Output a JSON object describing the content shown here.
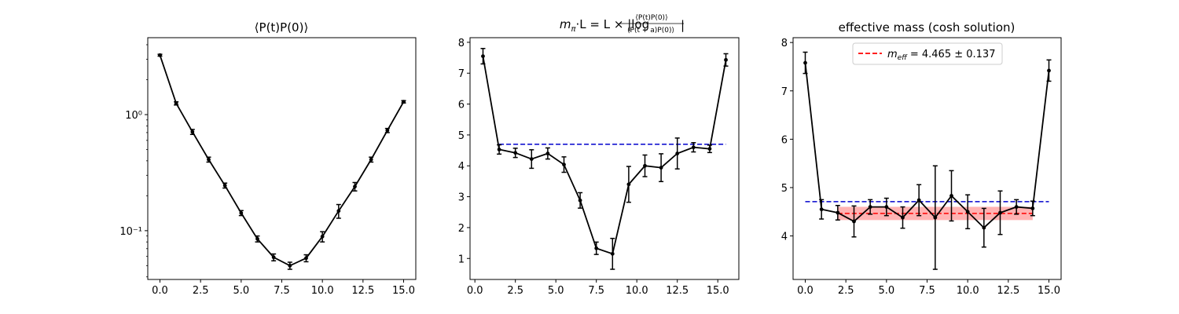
{
  "chart_data": [
    {
      "type": "line",
      "title": "⟨P(t)P(0)⟩",
      "yscale": "log",
      "xlim": [
        -0.75,
        15.75
      ],
      "ylim": [
        0.038,
        4.6
      ],
      "xticks": [
        0.0,
        2.5,
        5.0,
        7.5,
        10.0,
        12.5,
        15.0
      ],
      "xtick_labels": [
        "0.0",
        "2.5",
        "5.0",
        "7.5",
        "10.0",
        "12.5",
        "15.0"
      ],
      "yticks": [
        0.1,
        1
      ],
      "ytick_labels": [
        "10⁻¹",
        "10⁰"
      ],
      "series": [
        {
          "color": "#000000",
          "x": [
            0,
            1,
            2,
            3,
            4,
            5,
            6,
            7,
            8,
            9,
            10,
            11,
            12,
            13,
            14,
            15
          ],
          "y": [
            3.25,
            1.25,
            0.71,
            0.41,
            0.245,
            0.142,
            0.085,
            0.059,
            0.05,
            0.058,
            0.089,
            0.148,
            0.24,
            0.41,
            0.73,
            1.29
          ],
          "yerr": [
            0.06,
            0.04,
            0.035,
            0.02,
            0.012,
            0.007,
            0.005,
            0.004,
            0.0035,
            0.004,
            0.009,
            0.02,
            0.02,
            0.02,
            0.03,
            0.03
          ]
        }
      ]
    },
    {
      "type": "line",
      "title_parts": [
        "m",
        "π",
        "·L = L × |log",
        "⟨P(t)P(0)⟩",
        "⟨P(t + a)P(0)⟩",
        "|"
      ],
      "xlim": [
        -0.3,
        16.3
      ],
      "ylim": [
        0.32,
        8.15
      ],
      "xticks": [
        0.0,
        2.5,
        5.0,
        7.5,
        10.0,
        12.5,
        15.0
      ],
      "xtick_labels": [
        "0.0",
        "2.5",
        "5.0",
        "7.5",
        "10.0",
        "12.5",
        "15.0"
      ],
      "yticks": [
        1,
        2,
        3,
        4,
        5,
        6,
        7,
        8
      ],
      "ytick_labels": [
        "1",
        "2",
        "3",
        "4",
        "5",
        "6",
        "7",
        "8"
      ],
      "series": [
        {
          "color": "#000000",
          "x": [
            0.5,
            1.5,
            2.5,
            3.5,
            4.5,
            5.5,
            6.5,
            7.5,
            8.5,
            9.5,
            10.5,
            11.5,
            12.5,
            13.5,
            14.5,
            15.5
          ],
          "y": [
            7.55,
            4.53,
            4.42,
            4.22,
            4.4,
            4.04,
            2.88,
            1.33,
            1.15,
            3.4,
            4.0,
            3.94,
            4.4,
            4.6,
            4.55,
            7.43
          ],
          "yerr": [
            0.25,
            0.15,
            0.15,
            0.3,
            0.18,
            0.25,
            0.25,
            0.2,
            0.5,
            0.58,
            0.35,
            0.45,
            0.5,
            0.15,
            0.12,
            0.2
          ]
        }
      ],
      "hlines": [
        {
          "y": 4.7,
          "xmin": 1.5,
          "xmax": 15.5,
          "color": "#0000cc",
          "style": "dashed"
        }
      ]
    },
    {
      "type": "line",
      "title": "effective mass (cosh solution)",
      "xlim": [
        -0.75,
        15.75
      ],
      "ylim": [
        3.1,
        8.1
      ],
      "xticks": [
        0.0,
        2.5,
        5.0,
        7.5,
        10.0,
        12.5,
        15.0
      ],
      "xtick_labels": [
        "0.0",
        "2.5",
        "5.0",
        "7.5",
        "10.0",
        "12.5",
        "15.0"
      ],
      "yticks": [
        4,
        5,
        6,
        7,
        8
      ],
      "ytick_labels": [
        "4",
        "5",
        "6",
        "7",
        "8"
      ],
      "series": [
        {
          "color": "#000000",
          "x": [
            0,
            1,
            2,
            3,
            4,
            5,
            6,
            7,
            8,
            9,
            10,
            11,
            12,
            13,
            14,
            15
          ],
          "y": [
            7.58,
            4.55,
            4.48,
            4.3,
            4.6,
            4.6,
            4.38,
            4.74,
            4.38,
            4.83,
            4.5,
            4.17,
            4.48,
            4.6,
            4.57,
            7.42
          ],
          "yerr": [
            0.22,
            0.2,
            0.15,
            0.32,
            0.15,
            0.18,
            0.22,
            0.32,
            1.07,
            0.52,
            0.35,
            0.4,
            0.45,
            0.15,
            0.15,
            0.22
          ]
        }
      ],
      "hlines": [
        {
          "y": 4.71,
          "xmin": 0,
          "xmax": 15,
          "color": "#0000cc",
          "style": "dashed"
        },
        {
          "y": 4.465,
          "xmin": 2,
          "xmax": 14,
          "color": "#ff0000",
          "style": "dashed"
        }
      ],
      "band": {
        "ymin": 4.328,
        "ymax": 4.602,
        "xmin": 2,
        "xmax": 14,
        "color": "#ff9999"
      },
      "legend": {
        "position": "top-center",
        "entry": "m",
        "entry_sub": "eff",
        "entry_rest": " = 4.465 ± 0.137",
        "color": "#ff0000"
      }
    }
  ]
}
